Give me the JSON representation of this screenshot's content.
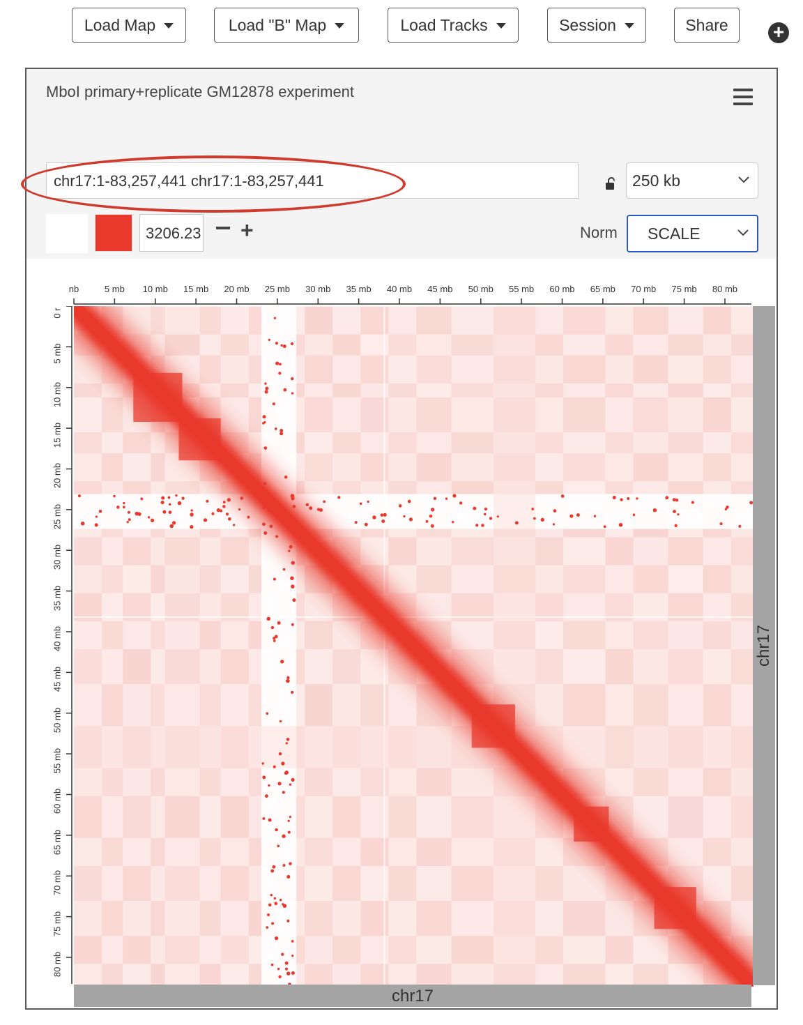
{
  "toolbar": {
    "load_map": "Load Map",
    "load_b_map": "Load \"B\" Map",
    "load_tracks": "Load Tracks",
    "session": "Session",
    "share": "Share"
  },
  "panel": {
    "title": "MboI primary+replicate GM12878 experiment",
    "locus": "chr17:1-83,257,441 chr17:1-83,257,441",
    "resolution": "250 kb",
    "color_scale_max": "3206.23",
    "norm_label": "Norm",
    "norm_value": "SCALE"
  },
  "map": {
    "chromosome": "chr17",
    "chrom_length_mb": 83.257,
    "x_ticks": [
      "nb",
      "5 mb",
      "10 mb",
      "15 mb",
      "20 mb",
      "25 mb",
      "30 mb",
      "35 mb",
      "40 mb",
      "45 mb",
      "50 mb",
      "55 mb",
      "60 mb",
      "65 mb",
      "70 mb",
      "75 mb",
      "80 mb"
    ],
    "y_ticks": [
      "0 r",
      "5 mb",
      "10 mb",
      "15 mb",
      "20 mb",
      "25 mb",
      "30 mb",
      "35 mb",
      "40 mb",
      "45 mb",
      "50 mb",
      "55 mb",
      "60 mb",
      "65 mb",
      "70 mb",
      "75 mb",
      "80 mb"
    ],
    "color": "#e8392c"
  },
  "colors": {
    "accent": "#e8392c",
    "highlight_oval": "#cf3a2c",
    "focus_border": "#2b59c3"
  }
}
